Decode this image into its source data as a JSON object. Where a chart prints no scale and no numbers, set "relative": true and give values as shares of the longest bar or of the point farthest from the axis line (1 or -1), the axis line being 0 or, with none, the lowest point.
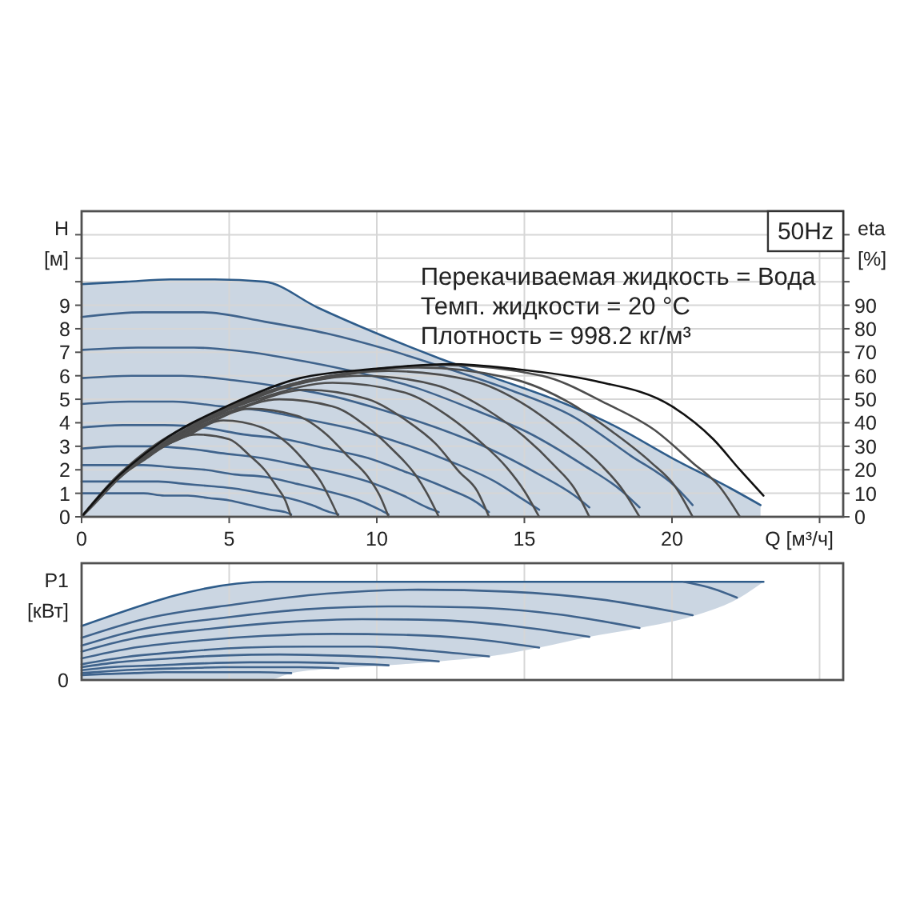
{
  "chart_data": [
    {
      "type": "line",
      "title": "50Hz",
      "xlabel": "Q [м³/ч]",
      "ylabel": "H [м]",
      "y2label": "eta [%]",
      "annotations": [
        "Перекачиваемая жидкость = Вода",
        "Темп. жидкости = 20 °C",
        "Плотность = 998.2 кг/м³"
      ],
      "xlim": [
        0,
        25.8
      ],
      "xticks": [
        0,
        5,
        10,
        15,
        20,
        {
          "value": 25,
          "label": null
        }
      ],
      "ylim": [
        0,
        13
      ],
      "yticks": [
        0,
        1,
        2,
        3,
        4,
        5,
        6,
        7,
        8,
        9,
        {
          "value": 10,
          "label": null
        },
        {
          "value": 11,
          "label": null
        },
        {
          "value": 12,
          "label": null
        }
      ],
      "y2lim": [
        0,
        130
      ],
      "y2ticks": [
        0,
        10,
        20,
        30,
        40,
        50,
        60,
        70,
        80,
        90,
        {
          "value": 100,
          "label": null
        },
        {
          "value": 110,
          "label": null
        },
        {
          "value": 120,
          "label": null
        }
      ],
      "grid": true,
      "series": [
        {
          "type": "area",
          "color": "#2e5c8a",
          "x": [
            0,
            1.5,
            3,
            4.5,
            6.2,
            8,
            10,
            12,
            14,
            16,
            18,
            20,
            22,
            23
          ],
          "values": [
            9.9,
            10.0,
            10.1,
            10.1,
            10.0,
            8.9,
            7.8,
            6.8,
            5.9,
            5.0,
            3.9,
            2.5,
            1.2,
            0.5
          ]
        },
        {
          "color": "#3f638c",
          "x": [
            0,
            0.7,
            1.4,
            2.1,
            2.8,
            3.6,
            4.3,
            5.0,
            5.7,
            6.4,
            6.9,
            7.1
          ],
          "values": [
            1.0,
            1.0,
            1.0,
            1.0,
            0.9,
            0.9,
            0.8,
            0.7,
            0.5,
            0.3,
            0.2,
            0.1
          ]
        },
        {
          "color": "#3f638c",
          "x": [
            0,
            0.9,
            1.7,
            2.6,
            3.5,
            4.4,
            5.2,
            6.1,
            7.0,
            7.8,
            8.4,
            8.7
          ],
          "values": [
            1.5,
            1.5,
            1.5,
            1.5,
            1.4,
            1.3,
            1.2,
            1.0,
            0.8,
            0.5,
            0.2,
            0.1
          ]
        },
        {
          "color": "#3f638c",
          "x": [
            0,
            1.0,
            2.1,
            3.1,
            4.2,
            5.2,
            6.2,
            7.3,
            8.3,
            9.4,
            10.1,
            10.4
          ],
          "values": [
            2.2,
            2.2,
            2.2,
            2.1,
            2.0,
            1.8,
            1.7,
            1.4,
            1.1,
            0.7,
            0.3,
            0.1
          ]
        },
        {
          "color": "#3f638c",
          "x": [
            0,
            1.2,
            2.4,
            3.6,
            4.8,
            6.1,
            7.3,
            8.5,
            9.7,
            10.9,
            11.7,
            12.1
          ],
          "values": [
            2.9,
            3.0,
            3.0,
            2.9,
            2.7,
            2.5,
            2.2,
            1.9,
            1.5,
            0.9,
            0.4,
            0.2
          ]
        },
        {
          "color": "#3f638c",
          "x": [
            0,
            1.4,
            2.8,
            4.1,
            5.5,
            6.9,
            8.3,
            9.7,
            11.0,
            12.4,
            13.4,
            13.8
          ],
          "values": [
            3.8,
            3.9,
            3.9,
            3.8,
            3.5,
            3.3,
            2.9,
            2.5,
            1.9,
            1.2,
            0.6,
            0.2
          ]
        },
        {
          "color": "#3f638c",
          "x": [
            0,
            1.6,
            3.1,
            4.7,
            6.2,
            7.8,
            9.3,
            10.9,
            12.4,
            14.0,
            15.0,
            15.5
          ],
          "values": [
            4.8,
            4.9,
            4.9,
            4.7,
            4.5,
            4.1,
            3.7,
            3.1,
            2.4,
            1.5,
            0.7,
            0.3
          ]
        },
        {
          "color": "#3f638c",
          "x": [
            0,
            1.7,
            3.4,
            5.2,
            6.9,
            8.6,
            10.3,
            12.0,
            13.8,
            15.5,
            16.7,
            17.2
          ],
          "values": [
            5.9,
            6.0,
            6.0,
            5.8,
            5.5,
            5.1,
            4.5,
            3.8,
            2.9,
            1.8,
            0.9,
            0.4
          ]
        },
        {
          "color": "#3f638c",
          "x": [
            0,
            1.9,
            3.8,
            5.7,
            7.6,
            9.5,
            11.3,
            13.2,
            15.1,
            17.0,
            18.3,
            18.9
          ],
          "values": [
            7.1,
            7.2,
            7.2,
            7.0,
            6.6,
            6.1,
            5.5,
            4.6,
            3.6,
            2.2,
            1.1,
            0.4
          ]
        },
        {
          "color": "#3f638c",
          "x": [
            0,
            2.1,
            4.1,
            6.2,
            8.3,
            10.4,
            12.4,
            14.5,
            16.6,
            18.6,
            20.1,
            20.7
          ],
          "values": [
            8.5,
            8.7,
            8.7,
            8.3,
            7.8,
            7.1,
            6.3,
            5.4,
            4.3,
            2.6,
            1.3,
            0.5
          ]
        },
        {
          "axis": "y2",
          "color": "#4d4d4d",
          "x": [
            0,
            0.4,
            0.7,
            1.4,
            2.1,
            2.8,
            3.9,
            5.0,
            5.7,
            6.2,
            6.6,
            6.9,
            7.1
          ],
          "values": [
            0,
            5,
            9,
            18,
            24,
            30,
            35,
            33,
            26,
            20,
            13,
            7,
            0
          ]
        },
        {
          "axis": "y2",
          "color": "#4d4d4d",
          "x": [
            0,
            0.4,
            0.9,
            1.7,
            2.6,
            3.5,
            4.8,
            6.1,
            7.0,
            7.6,
            8.1,
            8.4,
            8.7
          ],
          "values": [
            0,
            6,
            12,
            21,
            29,
            34,
            41,
            38,
            31,
            23,
            15,
            8,
            0
          ]
        },
        {
          "axis": "y2",
          "color": "#4d4d4d",
          "x": [
            0,
            0.5,
            1.0,
            2.1,
            3.1,
            4.2,
            5.7,
            7.3,
            8.3,
            9.0,
            9.7,
            10.1,
            10.4
          ],
          "values": [
            0,
            7,
            14,
            25,
            32,
            39,
            46,
            43,
            35,
            26,
            17,
            9,
            0
          ]
        },
        {
          "axis": "y2",
          "color": "#4d4d4d",
          "x": [
            0,
            0.6,
            1.2,
            2.4,
            3.6,
            4.8,
            6.7,
            8.5,
            9.7,
            10.5,
            11.3,
            11.7,
            12.1
          ],
          "values": [
            0,
            8,
            16,
            27,
            36,
            43,
            50,
            47,
            38,
            29,
            18,
            10,
            0
          ]
        },
        {
          "axis": "y2",
          "color": "#4d4d4d",
          "x": [
            0,
            0.7,
            1.4,
            2.8,
            4.1,
            5.5,
            7.6,
            9.7,
            11.0,
            12.0,
            12.8,
            13.4,
            13.8
          ],
          "values": [
            0,
            10,
            19,
            31,
            40,
            47,
            54,
            50,
            41,
            31,
            19,
            11,
            0
          ]
        },
        {
          "axis": "y2",
          "color": "#4d4d4d",
          "x": [
            0,
            0.8,
            1.6,
            3.1,
            4.7,
            6.2,
            8.5,
            10.9,
            12.4,
            13.5,
            14.4,
            15.0,
            15.5
          ],
          "values": [
            0,
            11,
            21,
            33,
            44,
            51,
            57,
            53,
            43,
            32,
            21,
            11,
            0
          ]
        },
        {
          "axis": "y2",
          "color": "#4d4d4d",
          "x": [
            0,
            0.9,
            1.7,
            3.4,
            5.2,
            6.9,
            9.5,
            12.0,
            13.8,
            15.0,
            16.0,
            16.7,
            17.2
          ],
          "values": [
            0,
            13,
            22,
            36,
            47,
            55,
            60,
            56,
            45,
            34,
            22,
            12,
            0
          ]
        },
        {
          "axis": "y2",
          "color": "#4d4d4d",
          "x": [
            0,
            0.9,
            1.9,
            3.8,
            5.7,
            7.6,
            10.4,
            13.2,
            15.1,
            16.4,
            17.6,
            18.3,
            18.9
          ],
          "values": [
            0,
            13,
            24,
            39,
            50,
            58,
            62,
            58,
            47,
            35,
            22,
            12,
            0
          ]
        },
        {
          "axis": "y2",
          "color": "#4d4d4d",
          "x": [
            0,
            1.0,
            2.1,
            4.1,
            6.2,
            8.3,
            11.4,
            14.5,
            16.6,
            18.0,
            19.3,
            20.1,
            20.7
          ],
          "values": [
            0,
            14,
            26,
            41,
            53,
            59,
            63.5,
            59,
            48,
            36,
            23,
            13,
            0
          ]
        },
        {
          "axis": "y2",
          "color": "#4d4d4d",
          "x": [
            0,
            1.1,
            2.2,
            4.5,
            6.7,
            8.9,
            12.3,
            15.6,
            17.8,
            19.4,
            20.7,
            21.6,
            22.3
          ],
          "values": [
            0,
            16,
            28,
            44,
            55,
            61,
            64.5,
            60,
            48,
            37,
            23,
            13,
            0
          ]
        },
        {
          "axis": "y2",
          "color": "#111111",
          "x": [
            0,
            0.9,
            2.7,
            5.0,
            7.4,
            10.0,
            12.5,
            14.6,
            17.3,
            20.0,
            21.4,
            22.3,
            23.1
          ],
          "values": [
            0,
            13,
            32,
            47.5,
            59,
            63,
            65,
            63,
            58,
            47,
            33,
            20,
            9
          ]
        }
      ]
    },
    {
      "type": "line",
      "ylabel": "P1 [кВт]",
      "relative": true,
      "annotations": [
        {
          "text": "0",
          "x": 0,
          "y": 0
        }
      ],
      "xlim": [
        0,
        25.8
      ],
      "xticks": [
        {
          "value": 5,
          "label": null
        },
        {
          "value": 10,
          "label": null
        },
        {
          "value": 15,
          "label": null
        },
        {
          "value": 20,
          "label": null
        },
        {
          "value": 25,
          "label": null
        }
      ],
      "tick_labels": false,
      "grid": "x",
      "series": [
        {
          "color": "#2e5c8a",
          "x": [
            0,
            6.3,
            7.1,
            8.7,
            10.4,
            12.1,
            13.8,
            15.5,
            17.2,
            18.9,
            20.7,
            22.3,
            23.1
          ],
          "values": [
            0.55,
            1,
            1,
            1,
            1,
            1,
            1,
            1,
            1,
            1,
            1,
            1,
            1
          ],
          "upper": [
            0.55,
            1,
            1,
            1,
            1,
            1,
            1,
            1,
            1,
            1,
            1,
            1,
            1
          ],
          "lower": [
            0,
            0,
            0.07,
            0.12,
            0.15,
            0.19,
            0.24,
            0.33,
            0.44,
            0.53,
            0.65,
            0.84,
            1
          ]
        },
        {
          "color": "#3f638c",
          "x": [
            0,
            0.7,
            1.8,
            2.8,
            3.9,
            5.0,
            6.0,
            7.1
          ],
          "values": [
            0.05,
            0.06,
            0.07,
            0.08,
            0.08,
            0.08,
            0.08,
            0.07
          ]
        },
        {
          "color": "#3f638c",
          "x": [
            0,
            0.9,
            2.2,
            3.5,
            4.8,
            6.1,
            7.4,
            8.7
          ],
          "values": [
            0.07,
            0.09,
            0.11,
            0.12,
            0.13,
            0.13,
            0.13,
            0.12
          ]
        },
        {
          "color": "#3f638c",
          "x": [
            0,
            1.0,
            2.6,
            4.2,
            5.7,
            7.3,
            8.8,
            10.4
          ],
          "values": [
            0.1,
            0.13,
            0.15,
            0.17,
            0.18,
            0.18,
            0.17,
            0.15
          ]
        },
        {
          "color": "#3f638c",
          "x": [
            0,
            1.2,
            3.0,
            4.8,
            6.7,
            8.5,
            10.3,
            12.1
          ],
          "values": [
            0.13,
            0.18,
            0.22,
            0.25,
            0.26,
            0.25,
            0.23,
            0.19
          ]
        },
        {
          "color": "#3f638c",
          "x": [
            0,
            1.4,
            3.5,
            5.5,
            7.6,
            9.7,
            11.7,
            13.8
          ],
          "values": [
            0.16,
            0.23,
            0.29,
            0.33,
            0.34,
            0.34,
            0.3,
            0.24
          ]
        },
        {
          "color": "#3f638c",
          "x": [
            0,
            1.6,
            3.9,
            6.2,
            8.5,
            10.9,
            13.2,
            15.5
          ],
          "values": [
            0.22,
            0.32,
            0.4,
            0.45,
            0.47,
            0.46,
            0.42,
            0.33
          ]
        },
        {
          "color": "#3f638c",
          "x": [
            0,
            1.7,
            4.3,
            6.9,
            9.5,
            12.0,
            14.6,
            17.2
          ],
          "values": [
            0.29,
            0.42,
            0.52,
            0.59,
            0.62,
            0.61,
            0.55,
            0.44
          ]
        },
        {
          "color": "#3f638c",
          "x": [
            0,
            1.9,
            4.7,
            7.6,
            10.4,
            13.2,
            16.1,
            18.9
          ],
          "values": [
            0.35,
            0.51,
            0.63,
            0.72,
            0.75,
            0.74,
            0.67,
            0.53
          ]
        },
        {
          "color": "#3f638c",
          "x": [
            0,
            2.1,
            5.2,
            8.3,
            11.4,
            14.5,
            17.6,
            20.7
          ],
          "values": [
            0.43,
            0.62,
            0.77,
            0.88,
            0.92,
            0.9,
            0.82,
            0.66
          ]
        },
        {
          "color": "#3f638c",
          "x": [
            20.4,
            21.4,
            22.2
          ],
          "values": [
            1.0,
            0.93,
            0.84
          ]
        }
      ]
    }
  ]
}
